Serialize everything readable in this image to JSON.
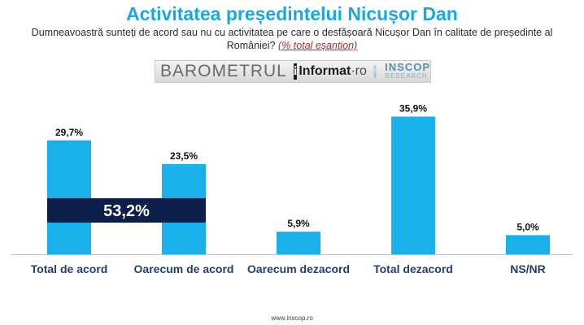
{
  "title": "Activitatea președintelui Nicușor Dan",
  "subtitle": "Dumneavoastră sunteți de acord sau nu cu activitatea pe care o desfășoară Nicușor Dan în calitate de președinte al României?",
  "subtitle_note": "(% total eșantion)",
  "brand": {
    "barometru": "BAROMETRUL",
    "informat": "Informat",
    "informat_suffix": "·ro",
    "inscop": "INSCOP",
    "inscop_sub": "RESEARCH"
  },
  "footer": "www.inscop.ro",
  "colors": {
    "bar": "#1ab0ec",
    "band": "#0c1f4a",
    "title": "#18a8e0",
    "axis_label": "#233d6e"
  },
  "chart_data": {
    "type": "bar",
    "categories": [
      "Total de acord",
      "Oarecum de acord",
      "Oarecum dezacord",
      "Total dezacord",
      "NS/NR"
    ],
    "values": [
      29.7,
      23.5,
      5.9,
      35.9,
      5.0
    ],
    "value_labels": [
      "29,7%",
      "23,5%",
      "5,9%",
      "35,9%",
      "5,0%"
    ],
    "ylim": [
      0,
      40
    ],
    "grid": false,
    "annotation": {
      "text": "53,2%",
      "spans_categories": [
        "Total de acord",
        "Oarecum de acord"
      ],
      "value": 53.2
    }
  }
}
